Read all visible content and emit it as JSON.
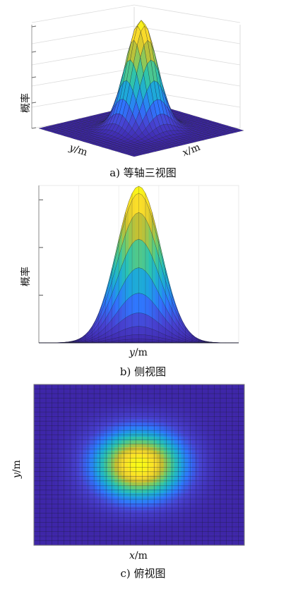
{
  "panels": {
    "a": {
      "caption": "a) 等轴三视图",
      "zlabel": "概率",
      "ylabel_var": "y",
      "ylabel_unit": "/m",
      "xlabel_var": "x",
      "xlabel_unit": "/m"
    },
    "b": {
      "caption": "b) 侧视图",
      "zlabel": "概率",
      "xlabel_var": "y",
      "xlabel_unit": "/m"
    },
    "c": {
      "caption": "c) 俯视图",
      "ylabel_var": "y",
      "ylabel_unit": "/m",
      "xlabel_var": "x",
      "xlabel_unit": "/m"
    }
  },
  "surface": {
    "function": "bivariate-gaussian",
    "grid_lines": 31,
    "colormap": [
      "#3e26a8",
      "#4743d3",
      "#2f76fd",
      "#1ca6de",
      "#2bc3b0",
      "#6fcc6c",
      "#c8c030",
      "#fadb2a",
      "#f9fb15"
    ]
  }
}
